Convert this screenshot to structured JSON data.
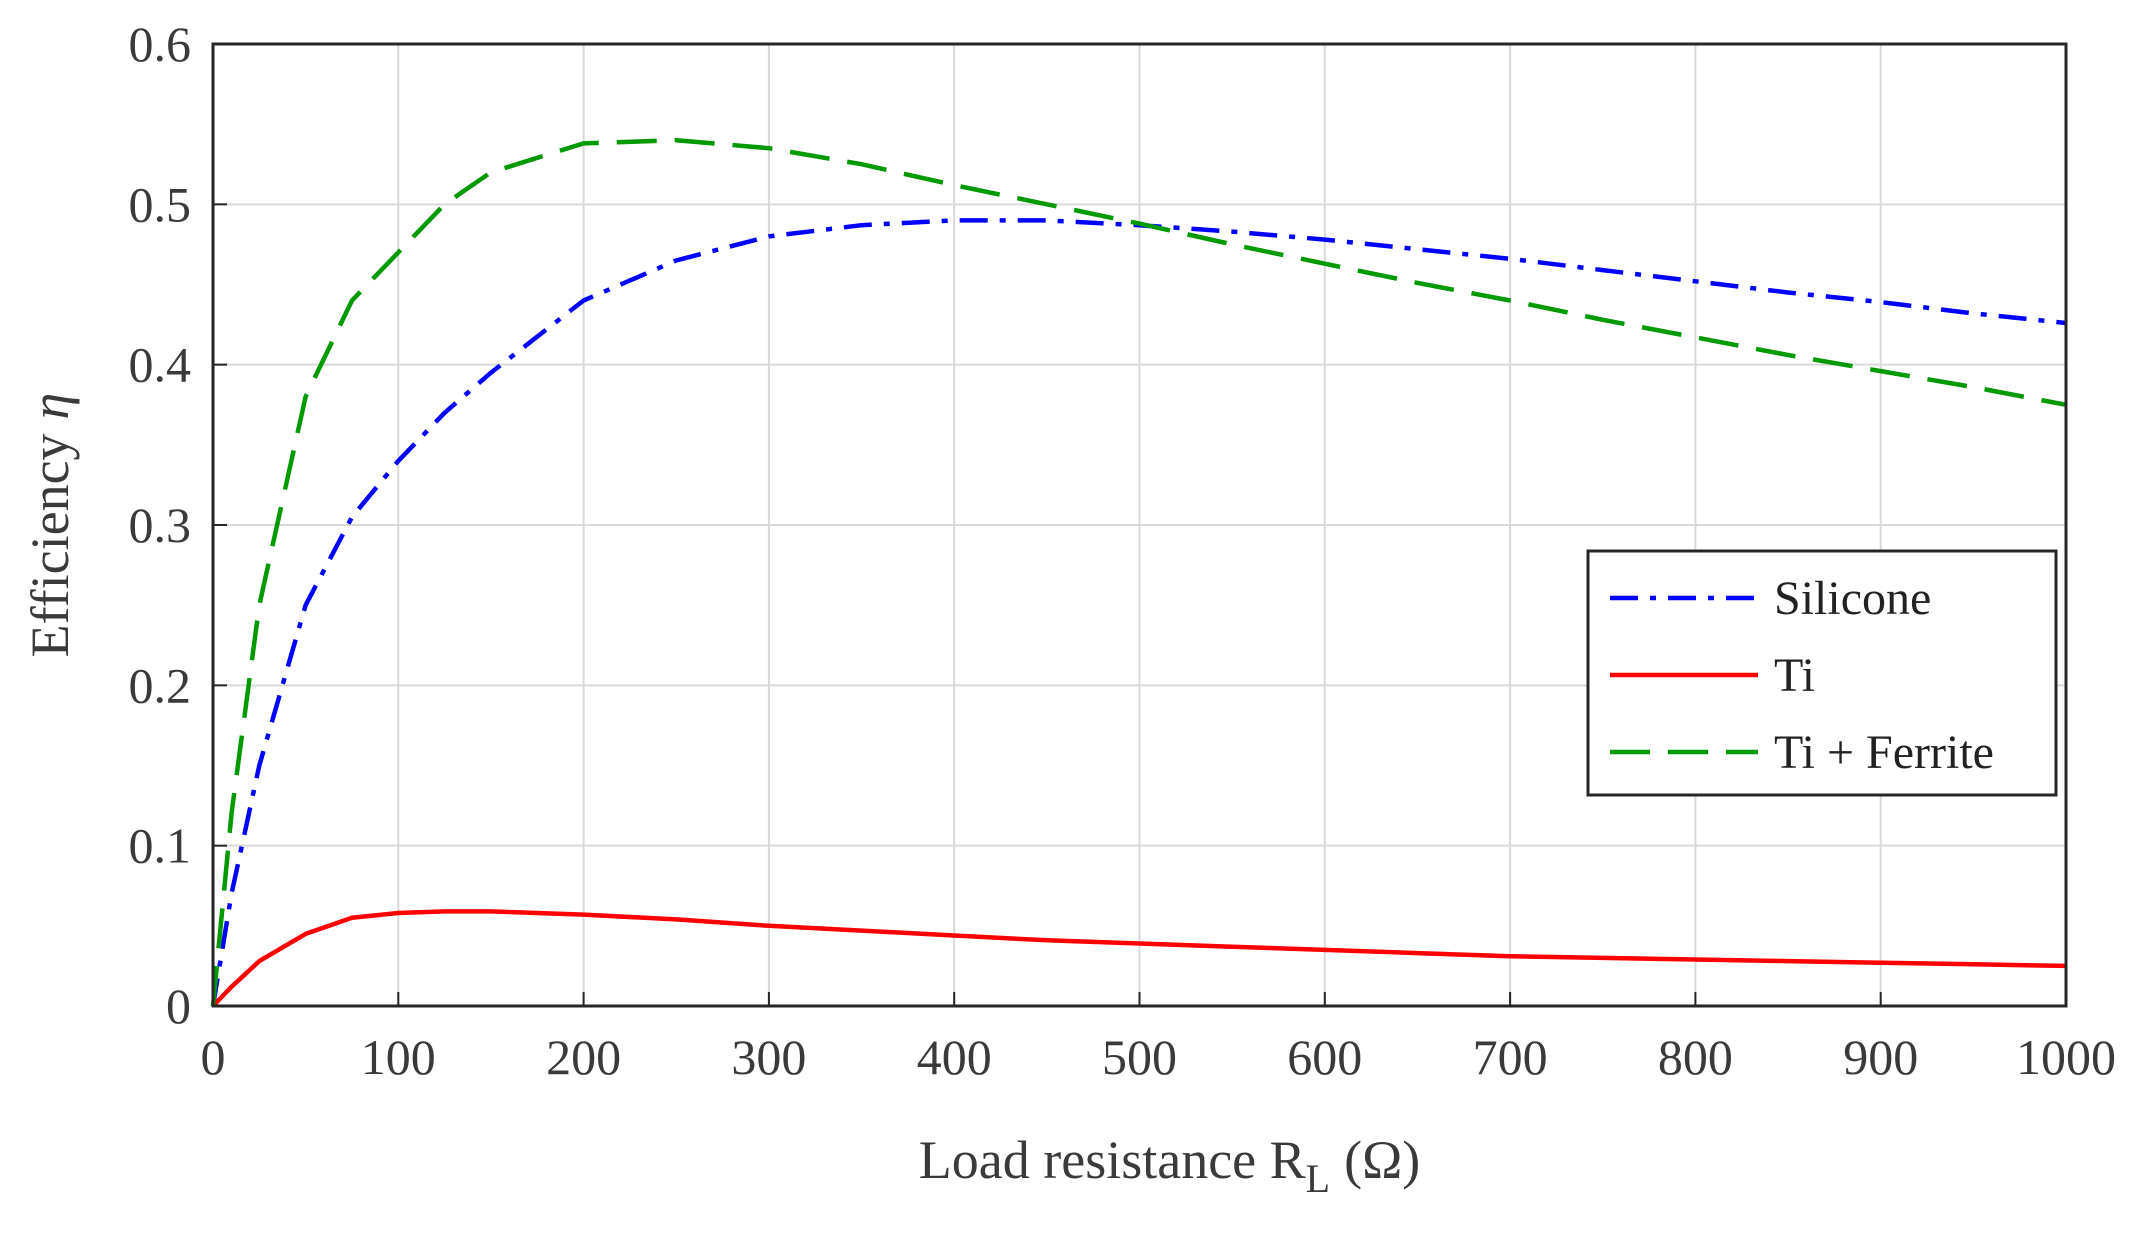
{
  "chart_data": {
    "type": "line",
    "xlabel": "Load resistance R",
    "xlabel_sub": "L",
    "xlabel_unit": "(Ω)",
    "ylabel": "Efficiency",
    "ylabel_symbol": "η",
    "xlim": [
      0,
      1000
    ],
    "ylim": [
      0,
      0.6
    ],
    "xticks": [
      0,
      100,
      200,
      300,
      400,
      500,
      600,
      700,
      800,
      900,
      1000
    ],
    "yticks": [
      0,
      0.1,
      0.2,
      0.3,
      0.4,
      0.5,
      0.6
    ],
    "xtick_labels": [
      "0",
      "100",
      "200",
      "300",
      "400",
      "500",
      "600",
      "700",
      "800",
      "900",
      "1000"
    ],
    "ytick_labels": [
      "0",
      "0.1",
      "0.2",
      "0.3",
      "0.4",
      "0.5",
      "0.6"
    ],
    "grid": true,
    "legend_position": "right",
    "series": [
      {
        "name": "Silicone",
        "color": "#0000ff",
        "style": "dashdot",
        "x": [
          0,
          10,
          25,
          50,
          75,
          100,
          125,
          150,
          200,
          250,
          300,
          350,
          400,
          450,
          500,
          550,
          600,
          650,
          700,
          750,
          800,
          850,
          900,
          950,
          1000
        ],
        "y": [
          0,
          0.07,
          0.15,
          0.25,
          0.305,
          0.34,
          0.37,
          0.395,
          0.44,
          0.465,
          0.48,
          0.487,
          0.49,
          0.49,
          0.487,
          0.483,
          0.478,
          0.472,
          0.466,
          0.459,
          0.452,
          0.445,
          0.439,
          0.432,
          0.426
        ]
      },
      {
        "name": "Ti",
        "color": "#ff0000",
        "style": "solid",
        "x": [
          0,
          10,
          25,
          50,
          75,
          100,
          125,
          150,
          200,
          250,
          300,
          350,
          400,
          450,
          500,
          550,
          600,
          650,
          700,
          750,
          800,
          850,
          900,
          950,
          1000
        ],
        "y": [
          0,
          0.012,
          0.028,
          0.045,
          0.055,
          0.058,
          0.059,
          0.059,
          0.057,
          0.054,
          0.05,
          0.047,
          0.044,
          0.041,
          0.039,
          0.037,
          0.035,
          0.033,
          0.031,
          0.03,
          0.029,
          0.028,
          0.027,
          0.026,
          0.025
        ]
      },
      {
        "name": "Ti + Ferrite",
        "color": "#009900",
        "style": "dashed",
        "x": [
          0,
          10,
          25,
          50,
          75,
          100,
          125,
          150,
          200,
          250,
          300,
          350,
          400,
          450,
          500,
          550,
          600,
          650,
          700,
          750,
          800,
          850,
          900,
          950,
          1000
        ],
        "y": [
          0,
          0.12,
          0.25,
          0.38,
          0.44,
          0.47,
          0.5,
          0.52,
          0.538,
          0.54,
          0.535,
          0.525,
          0.512,
          0.5,
          0.488,
          0.475,
          0.463,
          0.451,
          0.44,
          0.428,
          0.417,
          0.406,
          0.396,
          0.386,
          0.375
        ]
      }
    ]
  }
}
